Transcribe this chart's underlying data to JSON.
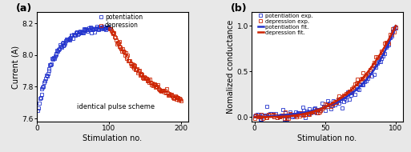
{
  "panel_a": {
    "title_label": "(a)",
    "xlabel": "Stimulation no.",
    "ylabel": "Current (A)",
    "xlim": [
      0,
      210
    ],
    "ylim": [
      7.58,
      8.27
    ],
    "yticks": [
      7.6,
      7.8,
      8.0,
      8.2
    ],
    "xticks": [
      0,
      100,
      200
    ],
    "annotation": "identical pulse scheme",
    "potentiation_color": "#2233CC",
    "depression_color": "#CC2200",
    "legend_labels": [
      "potentiation",
      "depression"
    ],
    "pot_y0": 7.62,
    "pot_y1": 8.18,
    "pot_tau": 22,
    "dep_y0": 8.18,
    "dep_y1": 7.63,
    "dep_tau": 55
  },
  "panel_b": {
    "title_label": "(b)",
    "xlabel": "Stimulation no.",
    "ylabel": "Nomalized conductance",
    "xlim": [
      -2,
      105
    ],
    "ylim": [
      -0.05,
      1.15
    ],
    "yticks": [
      0.0,
      0.5,
      1.0
    ],
    "xticks": [
      0,
      50,
      100
    ],
    "potentiation_color": "#2233CC",
    "depression_color": "#CC2200",
    "legend_labels": [
      "potentiation exp.",
      "depression exp.",
      "potentiation fit.",
      "depression fit."
    ],
    "pot_alpha": 0.042,
    "dep_power": 3.2
  },
  "figure": {
    "bg_color": "#e8e8e8",
    "panel_bg": "#ffffff"
  }
}
